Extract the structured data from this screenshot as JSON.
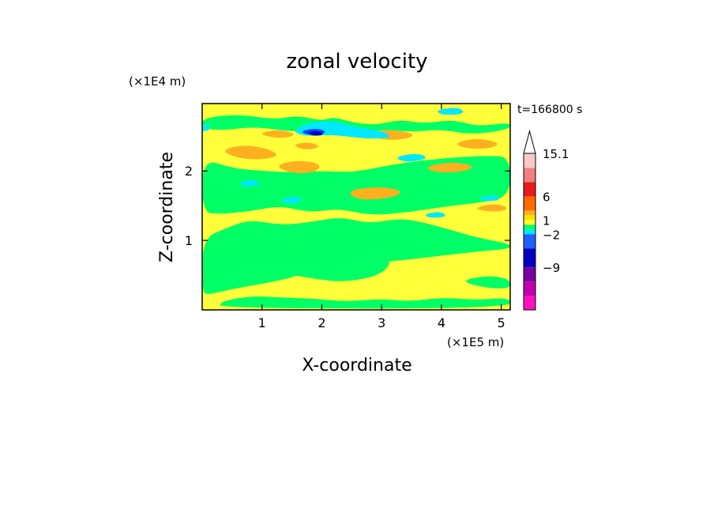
{
  "chart_data": {
    "type": "heatmap",
    "title": "zonal velocity",
    "xlabel": "X-coordinate",
    "ylabel": "Z-coordinate",
    "x_unit": "(×1E5 m)",
    "y_unit": "(×1E4 m)",
    "time_label": "t=166800 s",
    "x_range_e5m": [
      0,
      5.15
    ],
    "y_range_e4m": [
      0,
      2.97
    ],
    "x_ticks": [
      {
        "value": 1,
        "label": "1"
      },
      {
        "value": 2,
        "label": "2"
      },
      {
        "value": 3,
        "label": "3"
      },
      {
        "value": 4,
        "label": "4"
      },
      {
        "value": 5,
        "label": "5"
      }
    ],
    "y_ticks": [
      {
        "value": 1,
        "label": "1"
      },
      {
        "value": 2,
        "label": "2"
      }
    ],
    "colorbar": {
      "labels": [
        {
          "value": 15.1,
          "label": "15.1"
        },
        {
          "value": 6,
          "label": "6"
        },
        {
          "value": 1,
          "label": "1"
        },
        {
          "value": -2,
          "label": "−2"
        },
        {
          "value": -9,
          "label": "−9"
        }
      ],
      "levels_top_to_bottom": [
        {
          "color": "#ffc8c8",
          "upper": 15.1
        },
        {
          "color": "#f08080",
          "upper": 12
        },
        {
          "color": "#e81c1c",
          "upper": 9
        },
        {
          "color": "#ff6a00",
          "upper": 6
        },
        {
          "color": "#ffb020",
          "upper": 3
        },
        {
          "color": "#ffe000",
          "upper": 2
        },
        {
          "color": "#ffff30",
          "upper": 1
        },
        {
          "color": "#00ff60",
          "upper": 0
        },
        {
          "color": "#00e8ff",
          "upper": -1
        },
        {
          "color": "#2060ff",
          "upper": -2
        },
        {
          "color": "#0000c0",
          "upper": -5
        },
        {
          "color": "#7800a0",
          "upper": -9
        },
        {
          "color": "#c000b0",
          "upper": -12
        },
        {
          "color": "#ff10c0",
          "upper": -15
        }
      ],
      "extend_top": true
    },
    "field_colors": {
      "background": "#ffff3a",
      "green": "#00ff66",
      "orange": "#ffb020",
      "cyan": "#00e8ff",
      "blue": "#1040ff",
      "darkblue": "#0000c0"
    },
    "regions": [
      {
        "level": "green",
        "pts": [
          [
            0,
            2.76
          ],
          [
            0.6,
            2.82
          ],
          [
            1.2,
            2.74
          ],
          [
            1.6,
            2.8
          ],
          [
            2.0,
            2.72
          ],
          [
            2.2,
            2.78
          ],
          [
            2.5,
            2.7
          ],
          [
            2.9,
            2.66
          ],
          [
            3.3,
            2.74
          ],
          [
            3.7,
            2.68
          ],
          [
            4.2,
            2.74
          ],
          [
            4.6,
            2.64
          ],
          [
            5.15,
            2.7
          ],
          [
            5.15,
            2.6
          ],
          [
            4.5,
            2.52
          ],
          [
            4.0,
            2.6
          ],
          [
            3.5,
            2.56
          ],
          [
            3.0,
            2.6
          ],
          [
            2.5,
            2.52
          ],
          [
            2.0,
            2.6
          ],
          [
            1.5,
            2.56
          ],
          [
            0.9,
            2.64
          ],
          [
            0.3,
            2.58
          ],
          [
            0,
            2.62
          ]
        ]
      },
      {
        "level": "green",
        "pts": [
          [
            0,
            2.18
          ],
          [
            0.5,
            2.04
          ],
          [
            1.0,
            2.0
          ],
          [
            1.5,
            1.98
          ],
          [
            2.0,
            2.0
          ],
          [
            2.5,
            1.98
          ],
          [
            3.0,
            2.06
          ],
          [
            3.4,
            2.12
          ],
          [
            3.8,
            2.16
          ],
          [
            4.3,
            2.2
          ],
          [
            4.8,
            2.22
          ],
          [
            5.15,
            2.2
          ],
          [
            5.15,
            1.62
          ],
          [
            4.6,
            1.54
          ],
          [
            4.0,
            1.48
          ],
          [
            3.4,
            1.4
          ],
          [
            2.8,
            1.36
          ],
          [
            2.3,
            1.46
          ],
          [
            1.8,
            1.4
          ],
          [
            1.3,
            1.5
          ],
          [
            0.8,
            1.42
          ],
          [
            0.3,
            1.38
          ],
          [
            0,
            1.4
          ]
        ]
      },
      {
        "level": "green",
        "pts": [
          [
            0,
            1.02
          ],
          [
            0.4,
            1.18
          ],
          [
            0.8,
            1.3
          ],
          [
            1.3,
            1.22
          ],
          [
            1.8,
            1.26
          ],
          [
            2.3,
            1.34
          ],
          [
            2.8,
            1.24
          ],
          [
            3.3,
            1.32
          ],
          [
            3.7,
            1.26
          ],
          [
            4.2,
            1.14
          ],
          [
            4.6,
            1.04
          ],
          [
            5.15,
            0.95
          ],
          [
            5.15,
            0.88
          ],
          [
            4.6,
            0.84
          ],
          [
            4.0,
            0.78
          ],
          [
            3.2,
            0.7
          ],
          [
            2.4,
            0.64
          ],
          [
            1.9,
            0.58
          ],
          [
            1.4,
            0.44
          ],
          [
            0.9,
            0.36
          ],
          [
            0.5,
            0.3
          ],
          [
            0.1,
            0.22
          ],
          [
            0,
            0.25
          ]
        ]
      },
      {
        "level": "green",
        "pts": [
          [
            0,
            0.6
          ],
          [
            0.5,
            0.72
          ],
          [
            1.0,
            0.7
          ],
          [
            1.5,
            0.78
          ],
          [
            2.0,
            0.84
          ],
          [
            2.6,
            0.82
          ],
          [
            3.2,
            0.74
          ],
          [
            3.0,
            0.5
          ],
          [
            2.4,
            0.4
          ],
          [
            1.9,
            0.44
          ],
          [
            1.4,
            0.52
          ],
          [
            0.9,
            0.56
          ],
          [
            0.4,
            0.48
          ],
          [
            0,
            0.44
          ]
        ]
      },
      {
        "level": "green",
        "pts": [
          [
            0.3,
            0.12
          ],
          [
            0.8,
            0.2
          ],
          [
            1.3,
            0.18
          ],
          [
            1.9,
            0.16
          ],
          [
            2.4,
            0.12
          ],
          [
            3.0,
            0.16
          ],
          [
            3.5,
            0.12
          ],
          [
            4.0,
            0.18
          ],
          [
            4.6,
            0.14
          ],
          [
            5.15,
            0.18
          ],
          [
            5.15,
            0.02
          ],
          [
            0.3,
            0.02
          ]
        ]
      },
      {
        "level": "green",
        "pts": [
          [
            4.3,
            0.42
          ],
          [
            4.8,
            0.5
          ],
          [
            5.15,
            0.44
          ],
          [
            5.15,
            0.3
          ],
          [
            4.7,
            0.32
          ]
        ]
      },
      {
        "level": "orange",
        "pts": [
          [
            0.3,
            2.3
          ],
          [
            0.7,
            2.38
          ],
          [
            1.1,
            2.32
          ],
          [
            1.3,
            2.22
          ],
          [
            1.0,
            2.16
          ],
          [
            0.6,
            2.18
          ]
        ]
      },
      {
        "level": "orange",
        "pts": [
          [
            1.2,
            2.08
          ],
          [
            1.6,
            2.16
          ],
          [
            2.0,
            2.1
          ],
          [
            1.9,
            1.98
          ],
          [
            1.5,
            1.96
          ]
        ]
      },
      {
        "level": "orange",
        "pts": [
          [
            2.4,
            1.72
          ],
          [
            3.0,
            1.78
          ],
          [
            3.4,
            1.7
          ],
          [
            3.1,
            1.6
          ],
          [
            2.6,
            1.58
          ]
        ]
      },
      {
        "level": "orange",
        "pts": [
          [
            3.7,
            2.06
          ],
          [
            4.2,
            2.14
          ],
          [
            4.6,
            2.06
          ],
          [
            4.3,
            1.98
          ],
          [
            3.9,
            1.98
          ]
        ]
      },
      {
        "level": "orange",
        "pts": [
          [
            4.2,
            2.4
          ],
          [
            4.6,
            2.48
          ],
          [
            5.0,
            2.4
          ],
          [
            4.8,
            2.32
          ],
          [
            4.4,
            2.32
          ]
        ]
      },
      {
        "level": "orange",
        "pts": [
          [
            2.7,
            2.56
          ],
          [
            3.2,
            2.6
          ],
          [
            3.6,
            2.52
          ],
          [
            3.3,
            2.44
          ],
          [
            2.9,
            2.46
          ]
        ]
      },
      {
        "level": "orange",
        "pts": [
          [
            0.9,
            2.54
          ],
          [
            1.3,
            2.6
          ],
          [
            1.6,
            2.52
          ],
          [
            1.3,
            2.46
          ]
        ]
      },
      {
        "level": "orange",
        "pts": [
          [
            4.5,
            1.46
          ],
          [
            4.9,
            1.54
          ],
          [
            5.15,
            1.46
          ],
          [
            4.9,
            1.4
          ]
        ]
      },
      {
        "level": "orange",
        "pts": [
          [
            1.5,
            2.38
          ],
          [
            1.8,
            2.42
          ],
          [
            2.0,
            2.34
          ],
          [
            1.7,
            2.3
          ]
        ]
      },
      {
        "level": "cyan",
        "pts": [
          [
            1.5,
            2.58
          ],
          [
            1.8,
            2.7
          ],
          [
            2.2,
            2.72
          ],
          [
            2.6,
            2.62
          ],
          [
            3.0,
            2.58
          ],
          [
            3.2,
            2.48
          ],
          [
            2.8,
            2.46
          ],
          [
            2.4,
            2.5
          ],
          [
            2.1,
            2.52
          ],
          [
            1.7,
            2.5
          ]
        ]
      },
      {
        "level": "cyan",
        "pts": [
          [
            0.6,
            1.84
          ],
          [
            0.9,
            1.88
          ],
          [
            1.0,
            1.8
          ],
          [
            0.7,
            1.76
          ]
        ]
      },
      {
        "level": "cyan",
        "pts": [
          [
            1.3,
            1.6
          ],
          [
            1.6,
            1.64
          ],
          [
            1.7,
            1.56
          ],
          [
            1.4,
            1.52
          ]
        ]
      },
      {
        "level": "cyan",
        "pts": [
          [
            3.9,
            2.88
          ],
          [
            4.3,
            2.92
          ],
          [
            4.4,
            2.82
          ],
          [
            4.0,
            2.8
          ]
        ]
      },
      {
        "level": "cyan",
        "pts": [
          [
            3.7,
            1.38
          ],
          [
            4.0,
            1.42
          ],
          [
            4.1,
            1.34
          ],
          [
            3.8,
            1.32
          ]
        ]
      },
      {
        "level": "cyan",
        "pts": [
          [
            4.6,
            1.62
          ],
          [
            4.9,
            1.66
          ],
          [
            5.0,
            1.58
          ],
          [
            4.7,
            1.56
          ]
        ]
      },
      {
        "level": "cyan",
        "pts": [
          [
            3.2,
            2.2
          ],
          [
            3.6,
            2.26
          ],
          [
            3.8,
            2.18
          ],
          [
            3.4,
            2.12
          ]
        ]
      },
      {
        "level": "cyan",
        "pts": [
          [
            0,
            2.64
          ],
          [
            0.1,
            2.68
          ],
          [
            0.15,
            2.6
          ],
          [
            0,
            2.56
          ]
        ]
      },
      {
        "level": "blue",
        "pts": [
          [
            1.6,
            2.56
          ],
          [
            1.9,
            2.62
          ],
          [
            2.1,
            2.56
          ],
          [
            1.9,
            2.5
          ]
        ]
      },
      {
        "level": "darkblue",
        "pts": [
          [
            1.75,
            2.56
          ],
          [
            1.95,
            2.58
          ],
          [
            2.05,
            2.52
          ],
          [
            1.85,
            2.5
          ]
        ]
      }
    ]
  }
}
